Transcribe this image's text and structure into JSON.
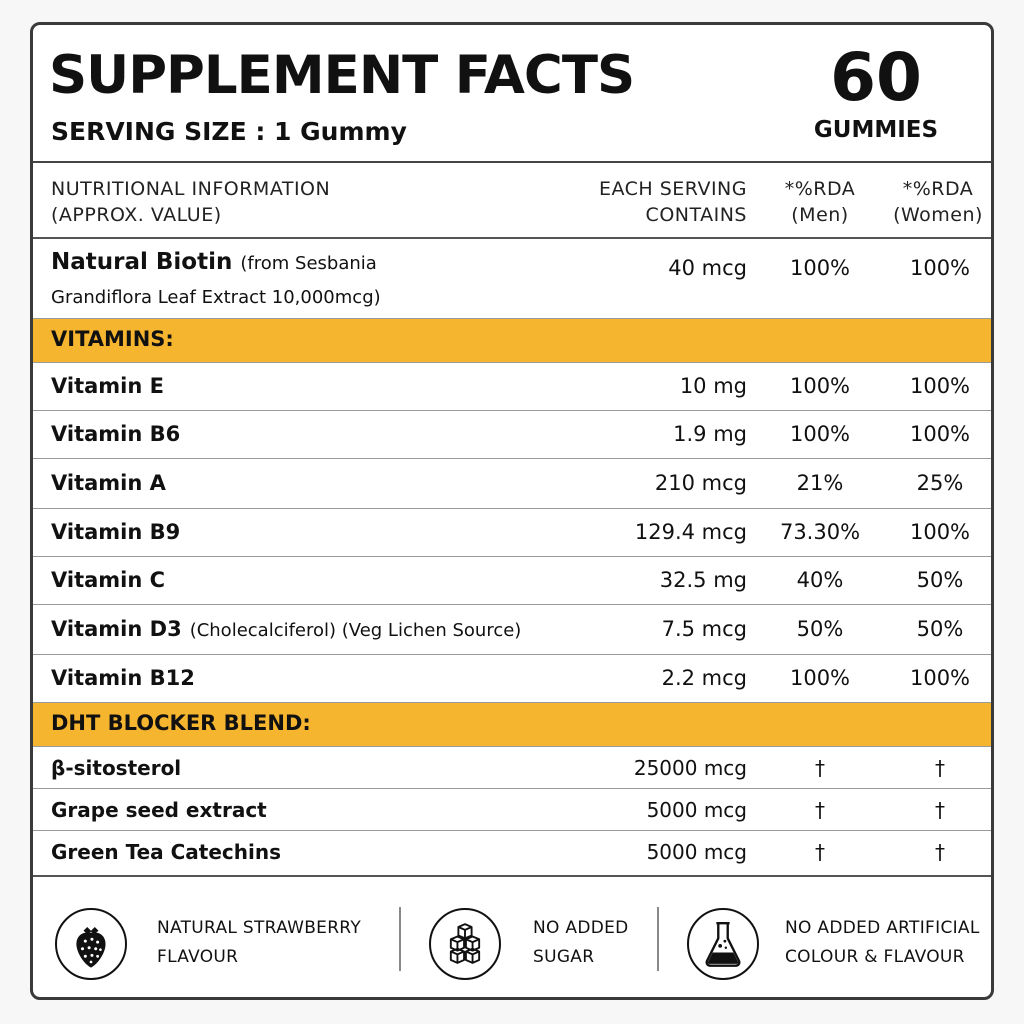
{
  "header": {
    "title": "SUPPLEMENT FACTS",
    "serving_size": "SERVING SIZE : 1 Gummy",
    "count": "60",
    "count_label": "GUMMIES"
  },
  "columns": {
    "name_line1": "NUTRITIONAL INFORMATION",
    "name_line2": "(APPROX. VALUE)",
    "serving_line1": "EACH SERVING",
    "serving_line2": "CONTAINS",
    "men_line1": "*%RDA",
    "men_line2": "(Men)",
    "women_line1": "*%RDA",
    "women_line2": "(Women)"
  },
  "biotin": {
    "name": "Natural Biotin",
    "source_line1": "(from Sesbania",
    "source_line2": "Grandiflora Leaf Extract 10,000mcg)",
    "amount": "40 mcg",
    "men": "100%",
    "women": "100%"
  },
  "vitamins": {
    "heading": "VITAMINS:",
    "rows": [
      {
        "name": "Vitamin E",
        "note": "",
        "amount": "10 mg",
        "men": "100%",
        "women": "100%"
      },
      {
        "name": "Vitamin B6",
        "note": "",
        "amount": "1.9 mg",
        "men": "100%",
        "women": "100%"
      },
      {
        "name": "Vitamin A",
        "note": "",
        "amount": "210 mcg",
        "men": "21%",
        "women": "25%"
      },
      {
        "name": "Vitamin B9",
        "note": "",
        "amount": "129.4 mcg",
        "men": "73.30%",
        "women": "100%"
      },
      {
        "name": "Vitamin C",
        "note": "",
        "amount": "32.5 mg",
        "men": "40%",
        "women": "50%"
      },
      {
        "name": "Vitamin D3",
        "note": "(Cholecalciferol) (Veg Lichen Source)",
        "amount": "7.5 mcg",
        "men": "50%",
        "women": "50%"
      },
      {
        "name": "Vitamin B12",
        "note": "",
        "amount": "2.2 mcg",
        "men": "100%",
        "women": "100%"
      }
    ]
  },
  "dht": {
    "heading": "DHT BLOCKER BLEND:",
    "rows": [
      {
        "name": "β-sitosterol",
        "amount": "25000 mcg",
        "men": "†",
        "women": "†"
      },
      {
        "name": "Grape seed extract",
        "amount": "5000 mcg",
        "men": "†",
        "women": "†"
      },
      {
        "name": "Green Tea Catechins",
        "amount": "5000 mcg",
        "men": "†",
        "women": "†"
      }
    ]
  },
  "features": [
    {
      "icon": "strawberry-icon",
      "line1": "NATURAL STRAWBERRY",
      "line2": "FLAVOUR"
    },
    {
      "icon": "sugar-cubes-icon",
      "line1": "NO ADDED",
      "line2": "SUGAR"
    },
    {
      "icon": "flask-icon",
      "line1": "NO ADDED ARTIFICIAL",
      "line2": "COLOUR & FLAVOUR"
    }
  ],
  "colors": {
    "accent": "#f6b52e",
    "border": "#3a3a3a",
    "text": "#111111"
  }
}
